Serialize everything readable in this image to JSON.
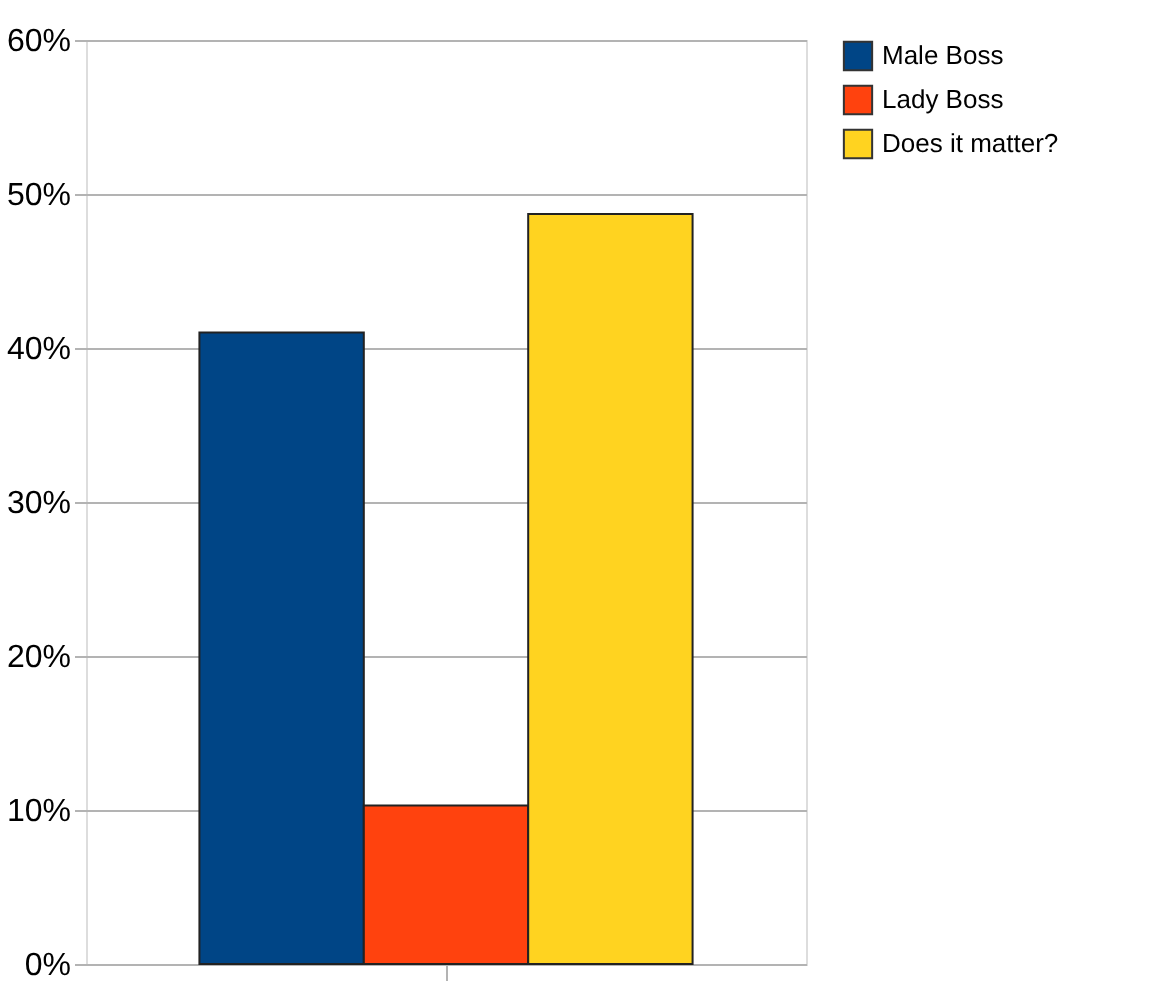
{
  "chart_data": {
    "type": "bar",
    "categories": [
      null
    ],
    "series": [
      {
        "name": "Male Boss",
        "color": "#004586",
        "values": [
          41.0
        ]
      },
      {
        "name": "Lady Boss",
        "color": "#ff420e",
        "values": [
          10.3
        ]
      },
      {
        "name": "Does it matter?",
        "color": "#ffd320",
        "values": [
          48.7
        ]
      }
    ],
    "ylim": [
      0,
      60
    ],
    "yticks": [
      {
        "value": 0,
        "label": "0%"
      },
      {
        "value": 10,
        "label": "10%"
      },
      {
        "value": 20,
        "label": "20%"
      },
      {
        "value": 30,
        "label": "30%"
      },
      {
        "value": 40,
        "label": "40%"
      },
      {
        "value": 50,
        "label": "50%"
      },
      {
        "value": 60,
        "label": "60%"
      }
    ],
    "grid": "y",
    "legend": "right"
  }
}
